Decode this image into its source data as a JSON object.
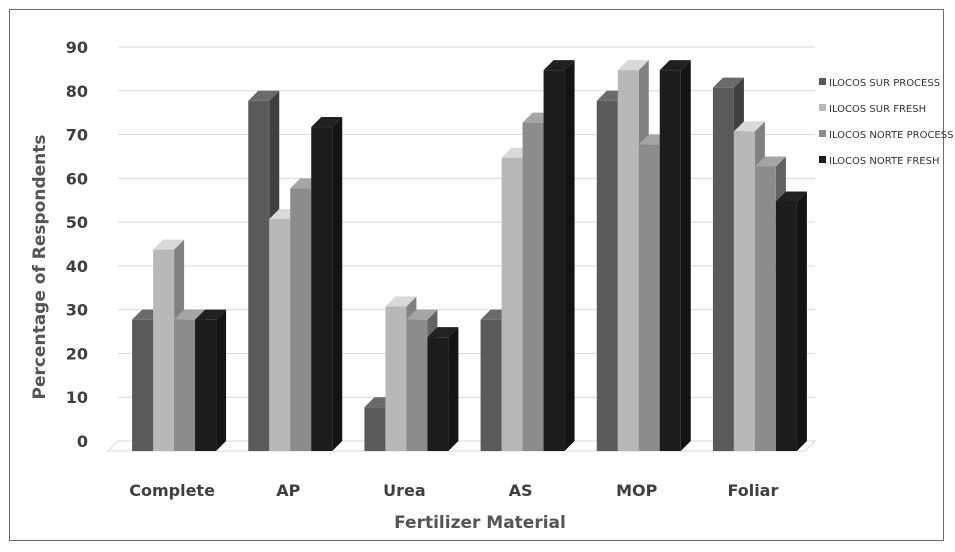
{
  "chart_data": {
    "type": "bar",
    "categories": [
      "Complete",
      "AP",
      "Urea",
      "AS",
      "MOP",
      "Foliar"
    ],
    "series": [
      {
        "name": "ILOCOS SUR PROCESS",
        "color": "#5a5a5a",
        "values": [
          30,
          80,
          10,
          30,
          80,
          83
        ]
      },
      {
        "name": "ILOCOS SUR FRESH",
        "color": "#b8b8b8",
        "values": [
          46,
          53,
          33,
          67,
          87,
          73
        ]
      },
      {
        "name": "ILOCOS NORTE PROCESS",
        "color": "#8c8c8c",
        "values": [
          30,
          60,
          30,
          75,
          70,
          65
        ]
      },
      {
        "name": "ILOCOS NORTE FRESH",
        "color": "#1c1c1c",
        "values": [
          30,
          74,
          26,
          87,
          87,
          57
        ]
      }
    ],
    "xlabel": "Fertilizer Material",
    "ylabel": "Percentage of Respondents",
    "ylim": [
      0,
      90
    ],
    "yticks": [
      0,
      10,
      20,
      30,
      40,
      50,
      60,
      70,
      80,
      90
    ],
    "grid": true,
    "legend_position": "right",
    "style": "3d-column"
  }
}
